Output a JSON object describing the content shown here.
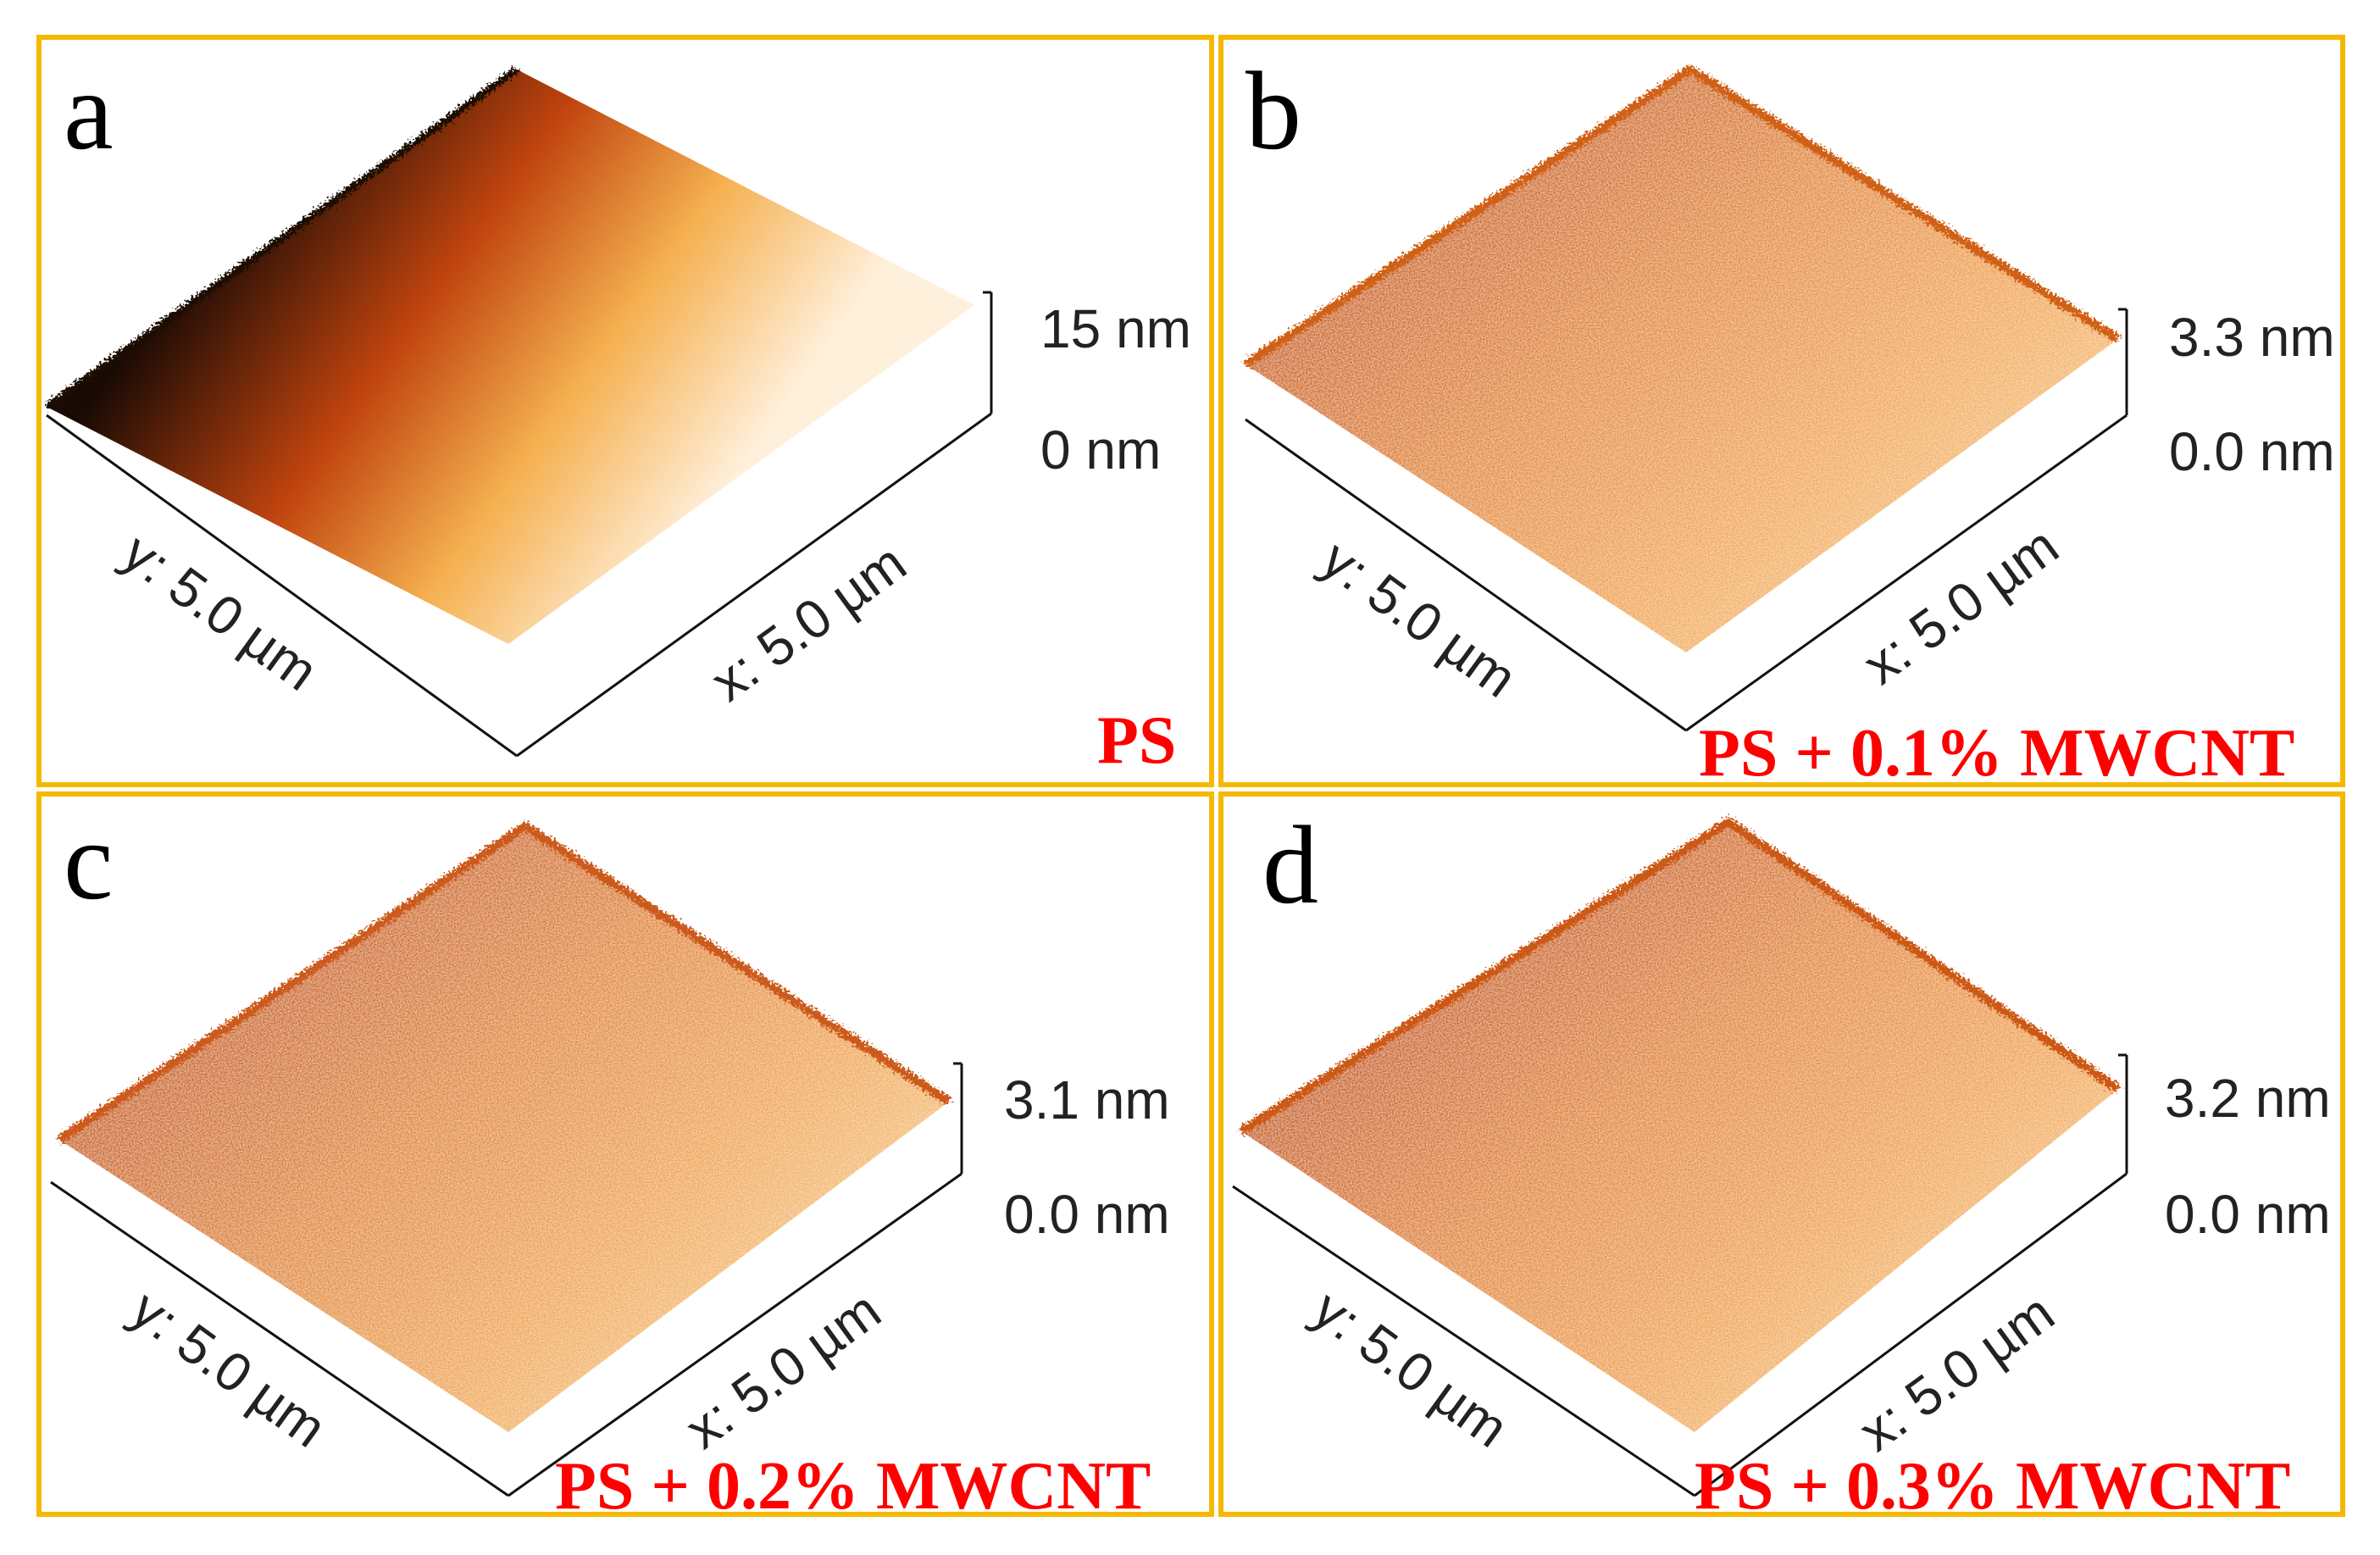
{
  "frame_color": "#f5b800",
  "panels": [
    {
      "letter": "a",
      "zmax": "15 nm",
      "zmin": "0 nm",
      "y_axis": "y: 5.0 µm",
      "x_axis": "x: 5.0 µm",
      "caption": "PS",
      "colors": {
        "dark": "#1a0a05",
        "mid": "#c0440e",
        "light": "#f5b050",
        "pale": "#fff0dc"
      }
    },
    {
      "letter": "b",
      "zmax": "3.3 nm",
      "zmin": "0.0 nm",
      "y_axis": "y: 5.0 µm",
      "x_axis": "x: 5.0 µm",
      "caption": "PS + 0.1% MWCNT",
      "colors": {
        "dark": "#c85a16",
        "mid": "#e48a3a",
        "light": "#f2ab5e",
        "pale": "#f6c587"
      }
    },
    {
      "letter": "c",
      "zmax": "3.1 nm",
      "zmin": "0.0 nm",
      "y_axis": "y: 5.0 µm",
      "x_axis": "x: 5.0 µm",
      "caption": "PS + 0.2% MWCNT",
      "colors": {
        "dark": "#c4561a",
        "mid": "#e08638",
        "light": "#f0a85a",
        "pale": "#f6c688"
      }
    },
    {
      "letter": "d",
      "zmax": "3.2 nm",
      "zmin": "0.0 nm",
      "y_axis": "y: 5.0 µm",
      "x_axis": "x: 5.0 µm",
      "caption": "PS + 0.3% MWCNT",
      "colors": {
        "dark": "#c45418",
        "mid": "#e28638",
        "light": "#f0a658",
        "pale": "#f6c486"
      }
    }
  ]
}
